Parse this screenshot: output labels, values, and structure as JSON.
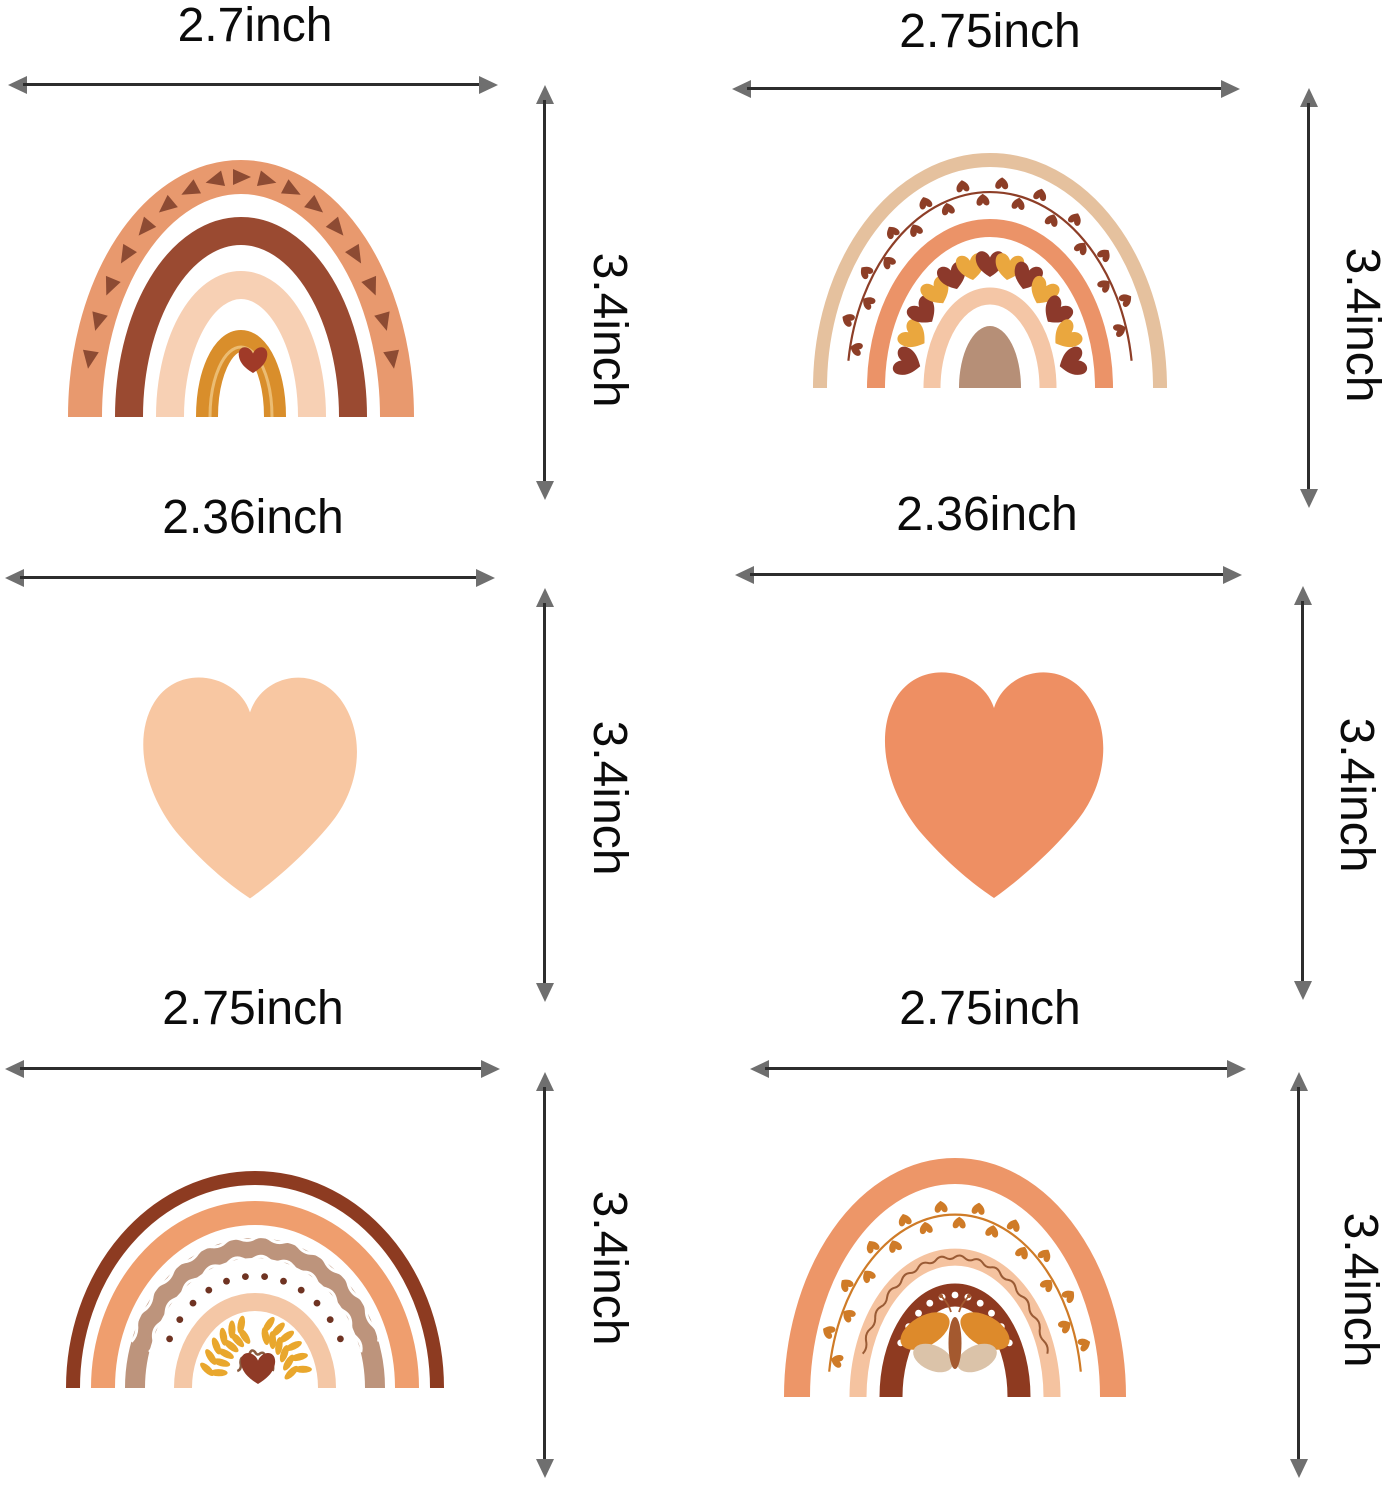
{
  "page": {
    "background": "#ffffff",
    "description": "size chart of six boho rainbow and heart wall decals"
  },
  "text_color": "#0b0b0b",
  "arrow": {
    "line_color": "#2d2d2d",
    "head_color": "#6f6f6f"
  },
  "palette": {
    "a_salmon": "#E8996E",
    "a_rust": "#9A4A31",
    "a_peach": "#F7D0B4",
    "a_mustard": "#D98E2B",
    "a_mustard_light": "#EBBC72",
    "tri_brown": "#8D4B33",
    "heart_red": "#A03A28",
    "b_beige": "#E5C19E",
    "b_vine": "#8D3E27",
    "b_salmon": "#EB9368",
    "b_heart_maroon": "#8C392B",
    "b_heart_yellow": "#EAA73E",
    "b_peach": "#F4C6A6",
    "b_center_tan": "#B68F77",
    "ml_heart": "#F8C7A2",
    "mr_heart": "#EE8F63",
    "c_rust": "#8D3B21",
    "c_salmon": "#EF9E6E",
    "c_tan": "#BD947C",
    "c_peach": "#F4C7A6",
    "c_dot": "#6F3322",
    "c_leaf": "#E9A72D",
    "c_wavy": "#8A5B3F",
    "c_heart": "#8F3A26",
    "d_salmon": "#ED9668",
    "d_vine": "#CF7B27",
    "d_peach": "#F5C3A0",
    "d_squiggle": "#9A5B35",
    "d_rust": "#8E3A20",
    "d_btf_orange": "#DD8A2B",
    "d_btf_tan": "#DBC3A9",
    "d_btf_body": "#A4592F"
  },
  "items": [
    {
      "position": "top-left",
      "shape": "rainbow",
      "style": "triangle-accents",
      "width_label": "2.7inch",
      "height_label": "3.4inch"
    },
    {
      "position": "top-right",
      "shape": "rainbow",
      "style": "hearts-and-vine",
      "width_label": "2.75inch",
      "height_label": "3.4inch"
    },
    {
      "position": "middle-left",
      "shape": "heart",
      "style": "light-peach",
      "width_label": "2.36inch",
      "height_label": "3.4inch"
    },
    {
      "position": "middle-right",
      "shape": "heart",
      "style": "orange",
      "width_label": "2.36inch",
      "height_label": "3.4inch"
    },
    {
      "position": "bottom-left",
      "shape": "rainbow",
      "style": "leaves-and-dots",
      "width_label": "2.75inch",
      "height_label": "3.4inch"
    },
    {
      "position": "bottom-right",
      "shape": "rainbow",
      "style": "butterfly",
      "width_label": "2.75inch",
      "height_label": "3.4inch"
    }
  ]
}
